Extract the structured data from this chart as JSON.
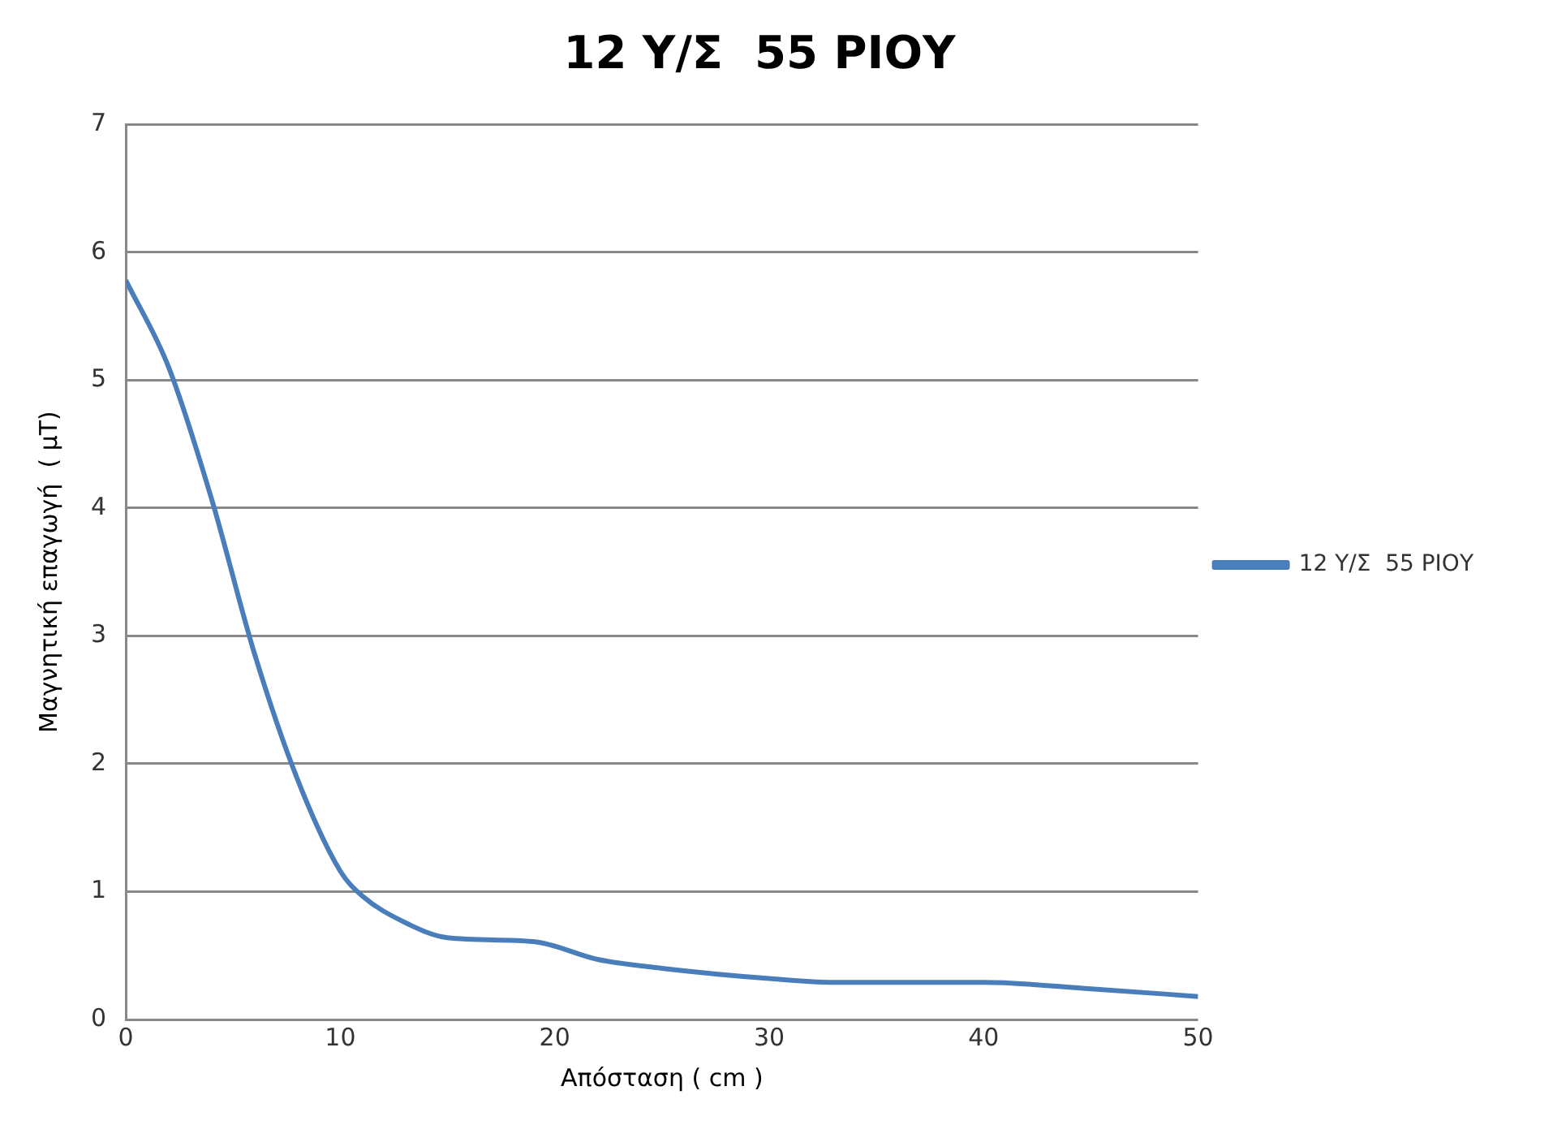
{
  "chart_data": {
    "type": "line",
    "title": "12 Υ/Σ  55 ΡΙΟΥ",
    "xlabel": "Απόσταση ( cm )",
    "ylabel": "Μαγνητική επαγωγή  ( μT)",
    "x": [
      0,
      2,
      4,
      6,
      8,
      10,
      11,
      13,
      15,
      19,
      22,
      25,
      30,
      33,
      40,
      45,
      50
    ],
    "series": [
      {
        "name": "12 Υ/Σ  55 ΡΙΟΥ",
        "color": "#4a7ebb",
        "values": [
          5.78,
          5.1,
          4.07,
          2.86,
          1.88,
          1.16,
          0.97,
          0.76,
          0.64,
          0.61,
          0.47,
          0.4,
          0.32,
          0.29,
          0.29,
          0.24,
          0.18
        ]
      }
    ],
    "xlim": [
      0,
      50
    ],
    "xticks": [
      0,
      10,
      20,
      30,
      40,
      50
    ],
    "ylim": [
      0,
      7
    ],
    "yticks": [
      0,
      1,
      2,
      3,
      4,
      5,
      6,
      7
    ],
    "grid": "y",
    "legend": "right",
    "marker": "none",
    "line_style": "solid"
  }
}
